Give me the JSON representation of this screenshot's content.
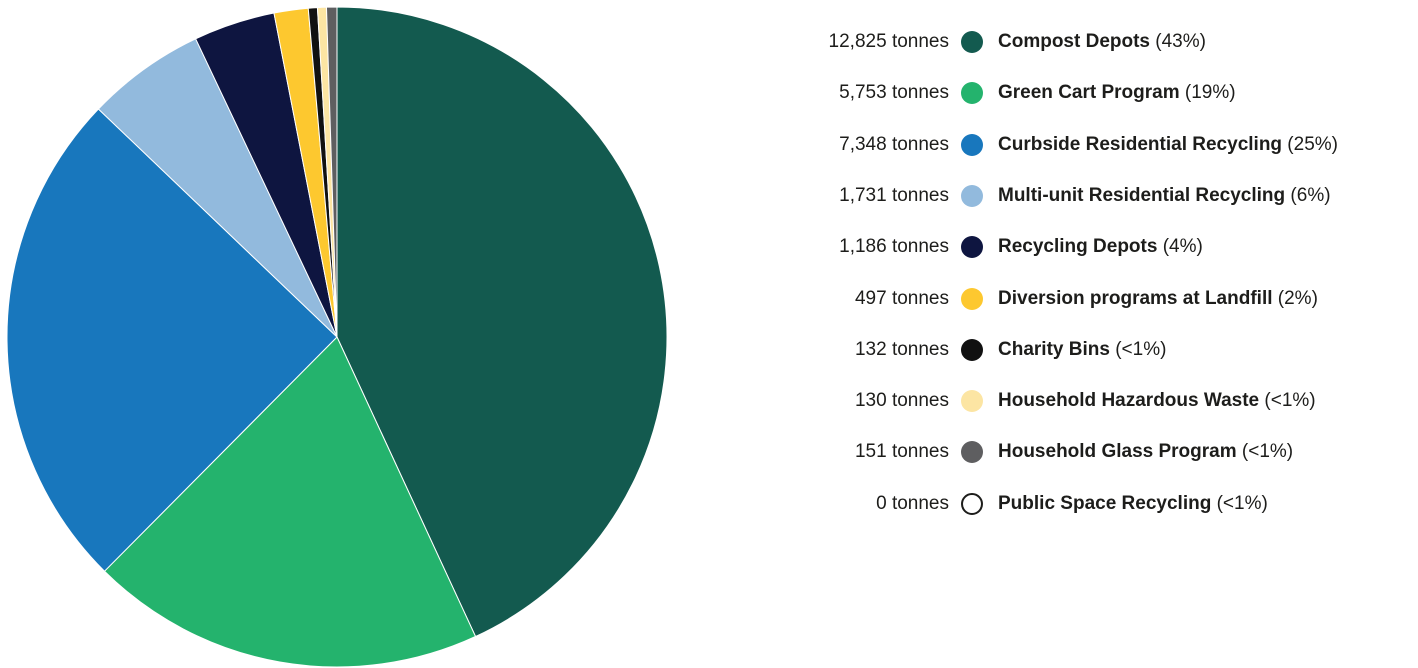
{
  "chart_data": {
    "type": "pie",
    "unit": "tonnes",
    "slices": [
      {
        "label": "Compost Depots",
        "amount": "12,825",
        "value": 12825,
        "percent": "(43%)",
        "color": "#135a4f"
      },
      {
        "label": "Green Cart Program",
        "amount": "5,753",
        "value": 5753,
        "percent": "(19%)",
        "color": "#24b36d"
      },
      {
        "label": "Curbside Residential Recycling",
        "amount": "7,348",
        "value": 7348,
        "percent": "(25%)",
        "color": "#1877bd"
      },
      {
        "label": "Multi-unit Residential Recycling",
        "amount": "1,731",
        "value": 1731,
        "percent": "(6%)",
        "color": "#92badd"
      },
      {
        "label": "Recycling Depots",
        "amount": "1,186",
        "value": 1186,
        "percent": "(4%)",
        "color": "#0e1540"
      },
      {
        "label": "Diversion programs at Landfill",
        "amount": "497",
        "value": 497,
        "percent": "(2%)",
        "color": "#fdc82f"
      },
      {
        "label": "Charity Bins",
        "amount": "132",
        "value": 132,
        "percent": "(<1%)",
        "color": "#111111"
      },
      {
        "label": "Household Hazardous Waste",
        "amount": "130",
        "value": 130,
        "percent": "(<1%)",
        "color": "#fce5a3"
      },
      {
        "label": "Household Glass Program",
        "amount": "151",
        "value": 151,
        "percent": "(<1%)",
        "color": "#5e5e60"
      },
      {
        "label": "Public Space Recycling",
        "amount": "0",
        "value": 0,
        "percent": "(<1%)",
        "color": "#ffffff"
      }
    ],
    "legend_position": "right"
  }
}
